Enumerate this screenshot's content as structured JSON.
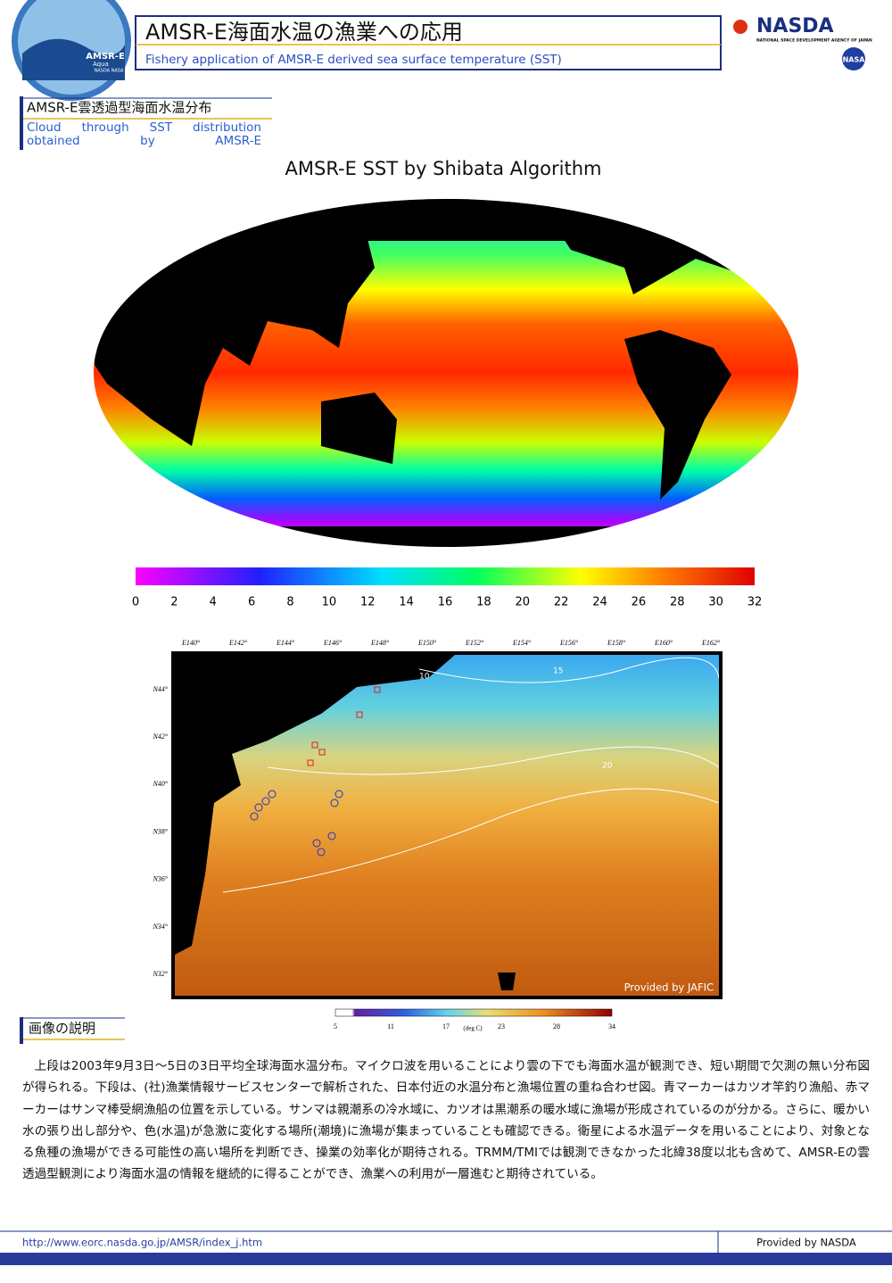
{
  "header": {
    "title": "AMSR-E海面水温の漁業への応用",
    "subtitle": "Fishery application of AMSR-E derived sea surface temperature (SST)",
    "logo_left": {
      "name": "AMSR-E",
      "sub": "Aqua",
      "credit": "NASDA NASA"
    },
    "logo_right": {
      "name": "NASDA",
      "full": "NATIONAL SPACE DEVELOPMENT AGENCY OF JAPAN",
      "partner": "NASA"
    }
  },
  "section1": {
    "heading": "AMSR-E雲透過型海面水温分布",
    "heading_en": "Cloud through SST distribution obtained by AMSR-E"
  },
  "global_map": {
    "title": "AMSR-E SST by Shibata Algorithm",
    "colorbar_ticks": [
      0,
      2,
      4,
      6,
      8,
      10,
      12,
      14,
      16,
      18,
      20,
      22,
      24,
      26,
      28,
      30,
      32
    ]
  },
  "regional_map": {
    "lon_labels": [
      "E140°",
      "E142°",
      "E144°",
      "E146°",
      "E148°",
      "E150°",
      "E152°",
      "E154°",
      "E156°",
      "E158°",
      "E160°",
      "E162°"
    ],
    "lat_labels": [
      "N44°",
      "N42°",
      "N40°",
      "N38°",
      "N36°",
      "N34°",
      "N32°"
    ],
    "contour_labels": [
      "10",
      "15",
      "20"
    ],
    "credit": "Provided by JAFIC",
    "colorbar_ticks": [
      5,
      11,
      17,
      23,
      28,
      34
    ],
    "colorbar_unit": "(deg C)"
  },
  "section2": {
    "heading": "画像の説明",
    "body": "上段は2003年9月3日～5日の3日平均全球海面水温分布。マイクロ波を用いることにより雲の下でも海面水温が観測でき、短い期間で欠測の無い分布図が得られる。下段は、(社)漁業情報サービスセンターで解析された、日本付近の水温分布と漁場位置の重ね合わせ図。青マーカーはカツオ竿釣り漁船、赤マーカーはサンマ棒受網漁船の位置を示している。サンマは親潮系の冷水域に、カツオは黒潮系の暖水域に漁場が形成されているのが分かる。さらに、暖かい水の張り出し部分や、色(水温)が急激に変化する場所(潮境)に漁場が集まっていることも確認できる。衛星による水温データを用いることにより、対象となる魚種の漁場ができる可能性の高い場所を判断でき、操業の効率化が期待される。TRMM/TMIでは観測できなかった北緯38度以北も含めて、AMSR-Eの雲透過型観測により海面水温の情報を継続的に得ることができ、漁業への利用が一層進むと期待されている。"
  },
  "footer": {
    "url": "http://www.eorc.nasda.go.jp/AMSR/index_j.htm",
    "credit": "Provided by NASDA"
  }
}
